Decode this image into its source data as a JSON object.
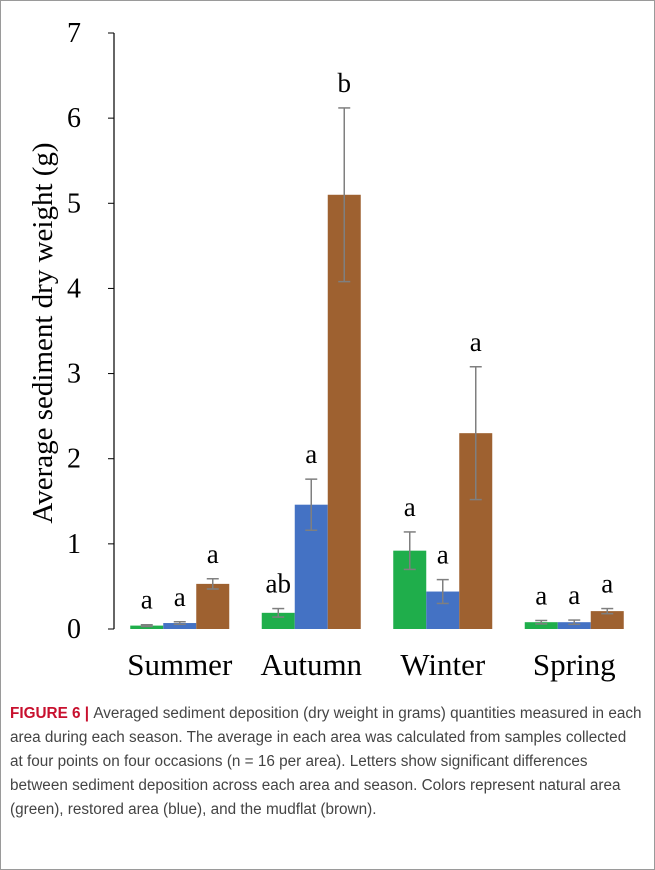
{
  "chart_data": {
    "type": "bar",
    "title": "",
    "xlabel": "",
    "ylabel": "Average sediment dry weight (g)",
    "ylim": [
      0,
      7
    ],
    "yticks": [
      "0",
      "1",
      "2",
      "3",
      "4",
      "5",
      "6",
      "7"
    ],
    "categories": [
      "Summer",
      "Autumn",
      "Winter",
      "Spring"
    ],
    "series": [
      {
        "color": "#1fae4b",
        "values": [
          0.04,
          0.19,
          0.92,
          0.08
        ],
        "errors": [
          0.01,
          0.05,
          0.22,
          0.02
        ],
        "significance": [
          "a",
          "ab",
          "a",
          "a"
        ]
      },
      {
        "color": "#4472c4",
        "values": [
          0.07,
          1.46,
          0.44,
          0.08
        ],
        "errors": [
          0.015,
          0.3,
          0.14,
          0.025
        ],
        "significance": [
          "a",
          "a",
          "a",
          "a"
        ]
      },
      {
        "color": "#9e6130",
        "values": [
          0.53,
          5.1,
          2.3,
          0.21
        ],
        "errors": [
          0.06,
          1.02,
          0.78,
          0.03
        ],
        "significance": [
          "a",
          "b",
          "a",
          "a"
        ]
      }
    ],
    "error_bar_color": "#7f7f7f",
    "grid": false,
    "legend": "none"
  },
  "caption": {
    "label": "FIGURE 6",
    "separator": " | ",
    "text": "Averaged sediment deposition (dry weight in grams) quantities measured in each area during each season. The average in each area was calculated from samples collected at four points on four occasions (n = 16 per area). Letters show significant differences between sediment deposition across each area and season. Colors represent natural area (green), restored area (blue), and the mudflat (brown)."
  }
}
